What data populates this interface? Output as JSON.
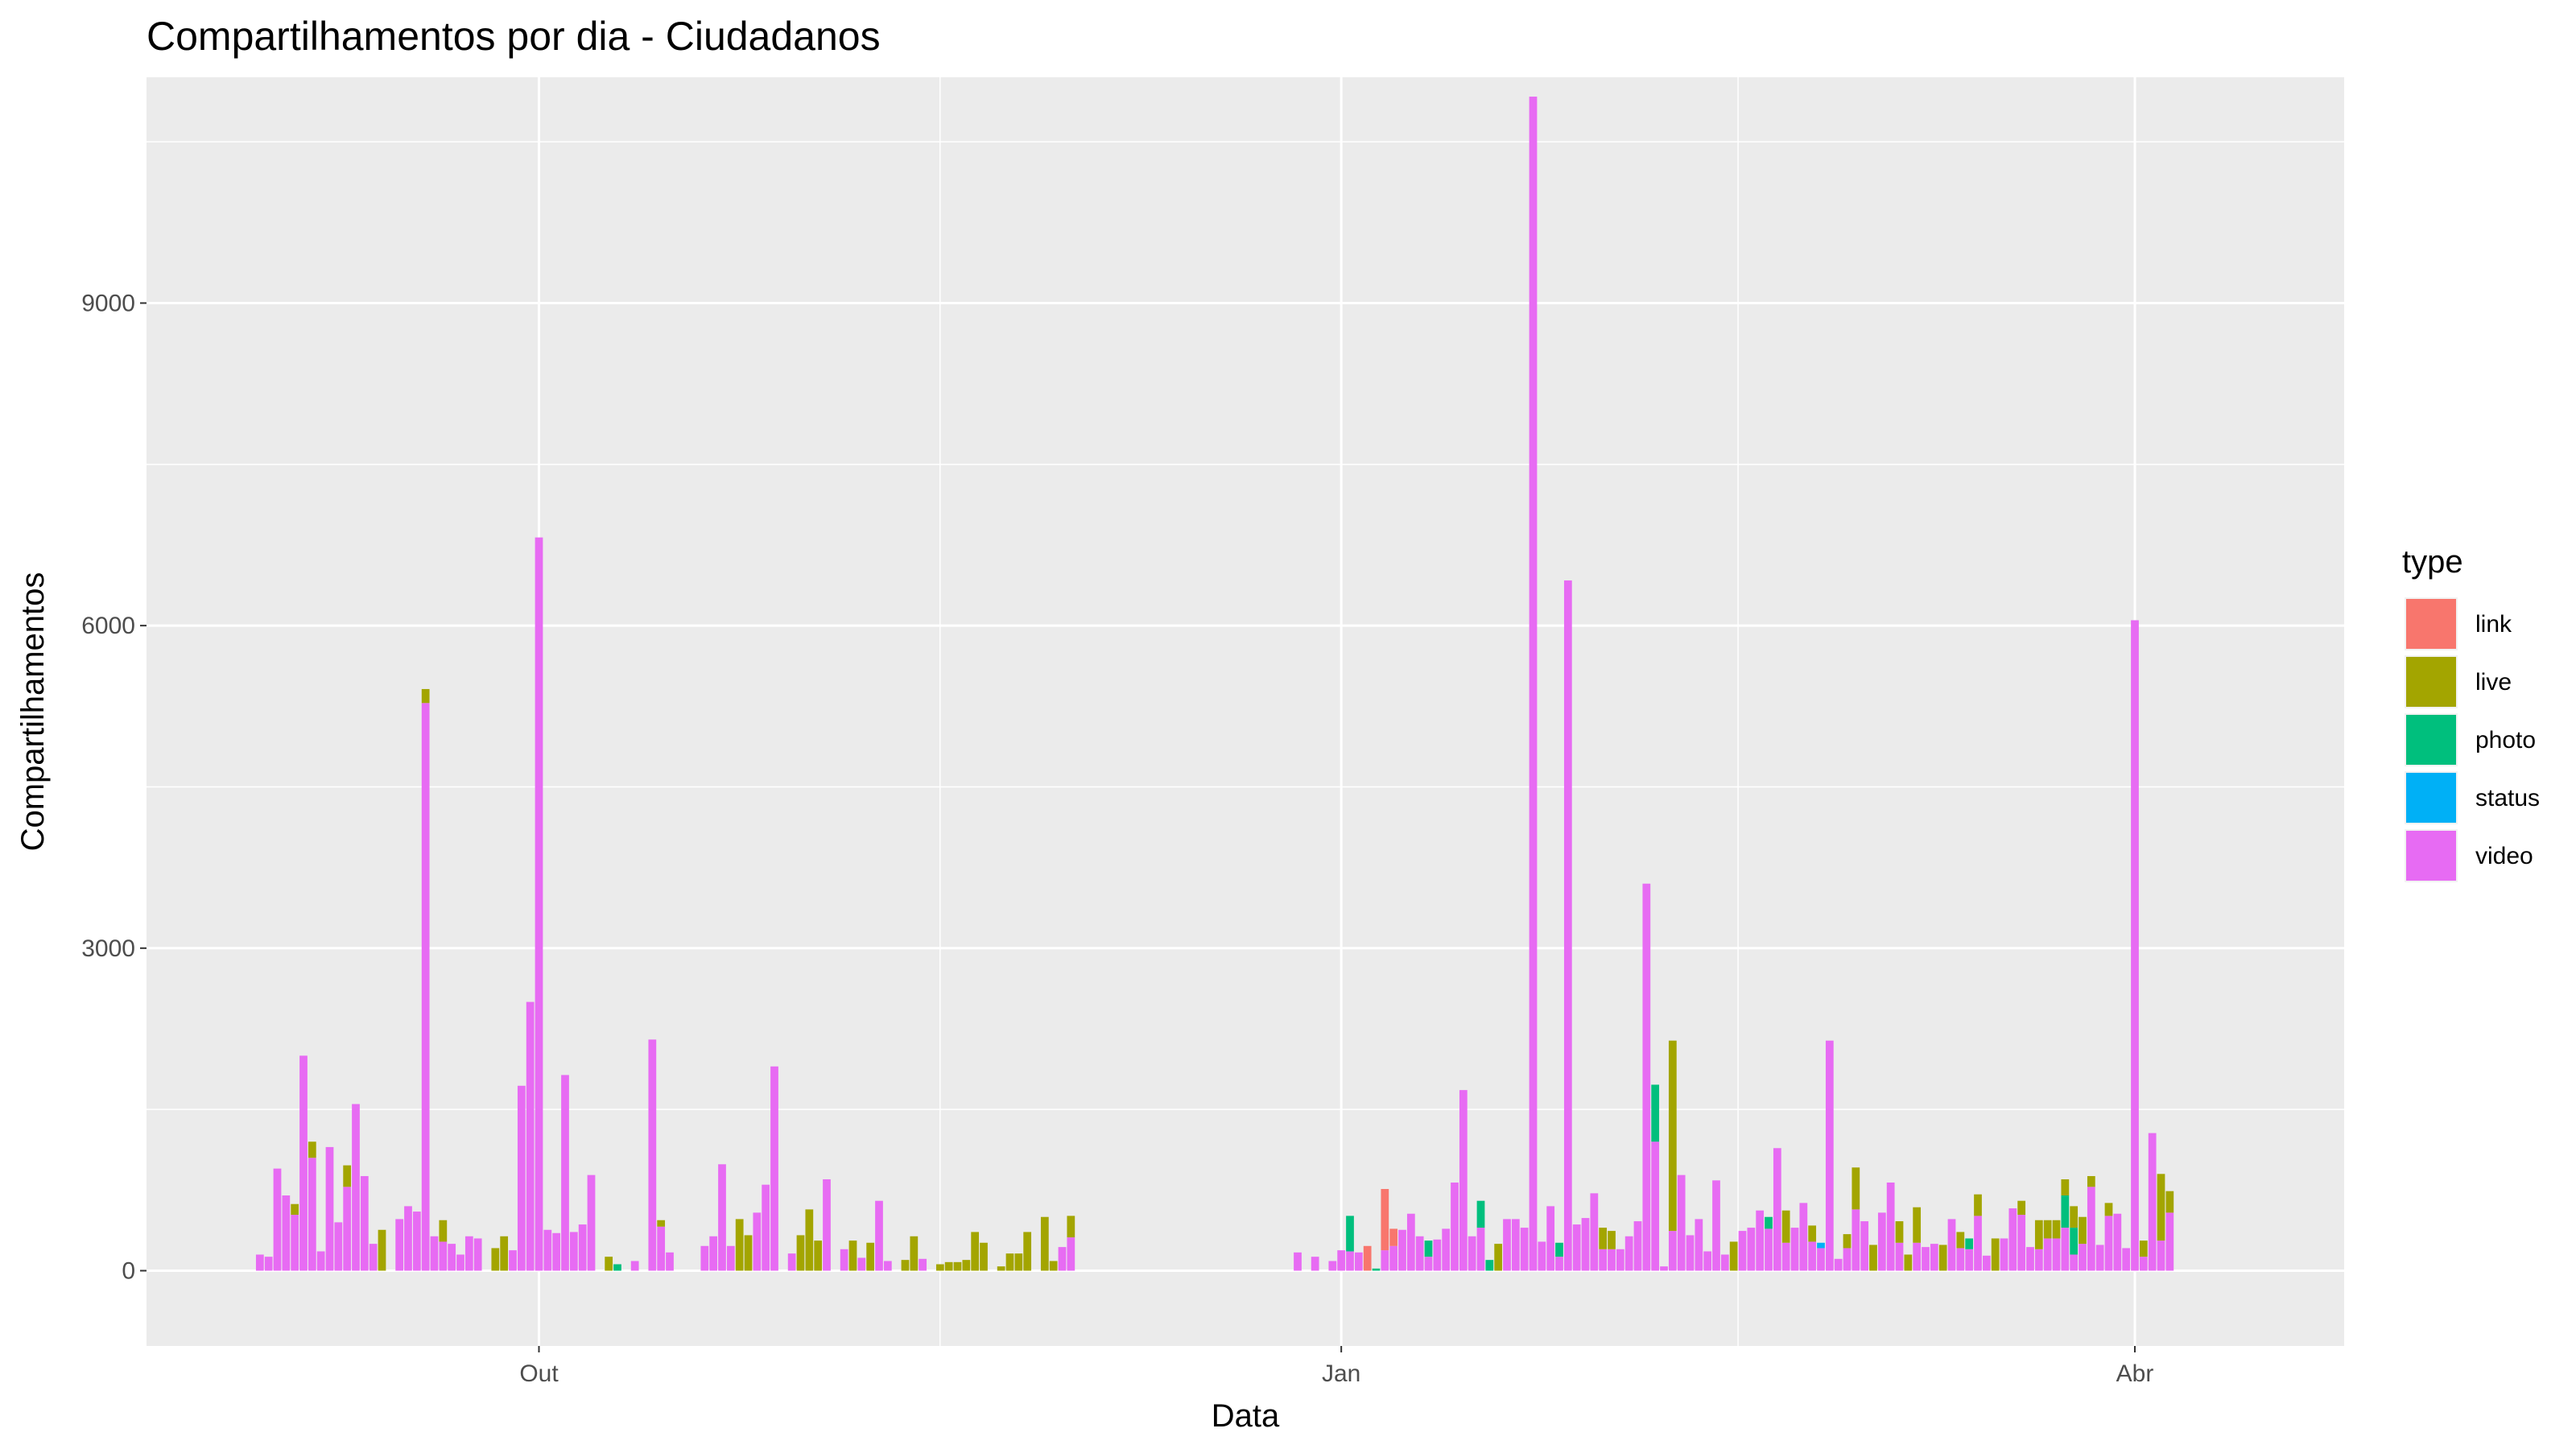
{
  "chart_data": {
    "type": "bar",
    "stacked": true,
    "title": "Compartilhamentos por dia - Ciudadanos",
    "xlabel": "Data",
    "ylabel": "Compartilhamentos",
    "x_ticks": [
      {
        "date": "2019-10-01",
        "label": "Out"
      },
      {
        "date": "2020-01-01",
        "label": "Jan"
      },
      {
        "date": "2020-04-01",
        "label": "Abr"
      }
    ],
    "y_ticks": [
      0,
      3000,
      6000,
      9000
    ],
    "xlim": [
      "2019-08-17",
      "2020-04-25"
    ],
    "ylim": [
      -700,
      11100
    ],
    "grid": true,
    "legend": {
      "title": "type",
      "position": "right",
      "entries": [
        {
          "name": "link",
          "color": "#F8766D"
        },
        {
          "name": "live",
          "color": "#A3A500"
        },
        {
          "name": "photo",
          "color": "#00BF7D"
        },
        {
          "name": "status",
          "color": "#00B0F6"
        },
        {
          "name": "video",
          "color": "#E76BF3"
        }
      ]
    },
    "series_order": [
      "link",
      "live",
      "photo",
      "status",
      "video"
    ],
    "bars": [
      {
        "date": "2019-08-30",
        "video": 150
      },
      {
        "date": "2019-08-31",
        "video": 130
      },
      {
        "date": "2019-09-01",
        "video": 950
      },
      {
        "date": "2019-09-02",
        "video": 700
      },
      {
        "date": "2019-09-03",
        "live": 100,
        "video": 520
      },
      {
        "date": "2019-09-04",
        "video": 2000
      },
      {
        "date": "2019-09-05",
        "live": 150,
        "video": 1050
      },
      {
        "date": "2019-09-06",
        "video": 180
      },
      {
        "date": "2019-09-07",
        "video": 1150
      },
      {
        "date": "2019-09-08",
        "video": 450
      },
      {
        "date": "2019-09-09",
        "live": 200,
        "video": 780
      },
      {
        "date": "2019-09-10",
        "video": 1550
      },
      {
        "date": "2019-09-11",
        "video": 880
      },
      {
        "date": "2019-09-12",
        "video": 250
      },
      {
        "date": "2019-09-13",
        "live": 380
      },
      {
        "date": "2019-09-15",
        "video": 480
      },
      {
        "date": "2019-09-16",
        "video": 600
      },
      {
        "date": "2019-09-17",
        "video": 550
      },
      {
        "date": "2019-09-18",
        "live": 130,
        "video": 5280
      },
      {
        "date": "2019-09-19",
        "video": 320
      },
      {
        "date": "2019-09-20",
        "live": 200,
        "video": 270
      },
      {
        "date": "2019-09-21",
        "video": 250
      },
      {
        "date": "2019-09-22",
        "video": 150
      },
      {
        "date": "2019-09-23",
        "video": 320
      },
      {
        "date": "2019-09-24",
        "video": 300
      },
      {
        "date": "2019-09-26",
        "live": 210
      },
      {
        "date": "2019-09-27",
        "live": 320
      },
      {
        "date": "2019-09-28",
        "video": 190
      },
      {
        "date": "2019-09-29",
        "video": 1720
      },
      {
        "date": "2019-09-30",
        "video": 2500
      },
      {
        "date": "2019-10-01",
        "video": 6820
      },
      {
        "date": "2019-10-02",
        "video": 380
      },
      {
        "date": "2019-10-03",
        "video": 350
      },
      {
        "date": "2019-10-04",
        "video": 1820
      },
      {
        "date": "2019-10-05",
        "video": 360
      },
      {
        "date": "2019-10-06",
        "video": 430
      },
      {
        "date": "2019-10-07",
        "video": 890
      },
      {
        "date": "2019-10-09",
        "live": 130
      },
      {
        "date": "2019-10-10",
        "photo": 60
      },
      {
        "date": "2019-10-12",
        "video": 90
      },
      {
        "date": "2019-10-14",
        "video": 2150
      },
      {
        "date": "2019-10-15",
        "live": 60,
        "video": 410
      },
      {
        "date": "2019-10-16",
        "video": 170
      },
      {
        "date": "2019-10-20",
        "video": 230
      },
      {
        "date": "2019-10-21",
        "video": 320
      },
      {
        "date": "2019-10-22",
        "video": 990
      },
      {
        "date": "2019-10-23",
        "video": 230
      },
      {
        "date": "2019-10-24",
        "live": 480
      },
      {
        "date": "2019-10-25",
        "live": 330
      },
      {
        "date": "2019-10-26",
        "video": 540
      },
      {
        "date": "2019-10-27",
        "video": 800
      },
      {
        "date": "2019-10-28",
        "video": 1900
      },
      {
        "date": "2019-10-30",
        "video": 160
      },
      {
        "date": "2019-10-31",
        "live": 330
      },
      {
        "date": "2019-11-01",
        "live": 570
      },
      {
        "date": "2019-11-02",
        "live": 280
      },
      {
        "date": "2019-11-03",
        "video": 850
      },
      {
        "date": "2019-11-05",
        "video": 200
      },
      {
        "date": "2019-11-06",
        "live": 280
      },
      {
        "date": "2019-11-07",
        "video": 120
      },
      {
        "date": "2019-11-08",
        "live": 260
      },
      {
        "date": "2019-11-09",
        "video": 650
      },
      {
        "date": "2019-11-10",
        "video": 90
      },
      {
        "date": "2019-11-12",
        "live": 100
      },
      {
        "date": "2019-11-13",
        "live": 320
      },
      {
        "date": "2019-11-14",
        "video": 110
      },
      {
        "date": "2019-11-16",
        "live": 60
      },
      {
        "date": "2019-11-17",
        "live": 80
      },
      {
        "date": "2019-11-18",
        "live": 80
      },
      {
        "date": "2019-11-19",
        "live": 100
      },
      {
        "date": "2019-11-20",
        "live": 360
      },
      {
        "date": "2019-11-21",
        "live": 260
      },
      {
        "date": "2019-11-23",
        "live": 40
      },
      {
        "date": "2019-11-24",
        "live": 160
      },
      {
        "date": "2019-11-25",
        "live": 160
      },
      {
        "date": "2019-11-26",
        "live": 360
      },
      {
        "date": "2019-11-28",
        "live": 500
      },
      {
        "date": "2019-11-29",
        "live": 90
      },
      {
        "date": "2019-11-30",
        "video": 220
      },
      {
        "date": "2019-12-01",
        "live": 200,
        "video": 310
      },
      {
        "date": "2019-12-27",
        "video": 170
      },
      {
        "date": "2019-12-29",
        "video": 130
      },
      {
        "date": "2019-12-31",
        "video": 90
      },
      {
        "date": "2020-01-01",
        "video": 190
      },
      {
        "date": "2020-01-02",
        "photo": 330,
        "video": 180
      },
      {
        "date": "2020-01-03",
        "video": 170
      },
      {
        "date": "2020-01-04",
        "link": 230
      },
      {
        "date": "2020-01-05",
        "photo": 20
      },
      {
        "date": "2020-01-06",
        "link": 570,
        "video": 190
      },
      {
        "date": "2020-01-07",
        "link": 160,
        "video": 230
      },
      {
        "date": "2020-01-08",
        "video": 380
      },
      {
        "date": "2020-01-09",
        "video": 530
      },
      {
        "date": "2020-01-10",
        "video": 320
      },
      {
        "date": "2020-01-11",
        "photo": 150,
        "video": 130
      },
      {
        "date": "2020-01-12",
        "video": 290
      },
      {
        "date": "2020-01-13",
        "video": 390
      },
      {
        "date": "2020-01-14",
        "video": 820
      },
      {
        "date": "2020-01-15",
        "video": 1680
      },
      {
        "date": "2020-01-16",
        "video": 320
      },
      {
        "date": "2020-01-17",
        "photo": 250,
        "video": 400
      },
      {
        "date": "2020-01-18",
        "photo": 100
      },
      {
        "date": "2020-01-19",
        "live": 250
      },
      {
        "date": "2020-01-20",
        "video": 480
      },
      {
        "date": "2020-01-21",
        "video": 480
      },
      {
        "date": "2020-01-22",
        "video": 400
      },
      {
        "date": "2020-01-23",
        "video": 10920
      },
      {
        "date": "2020-01-24",
        "video": 270
      },
      {
        "date": "2020-01-25",
        "video": 600
      },
      {
        "date": "2020-01-26",
        "photo": 130,
        "video": 130
      },
      {
        "date": "2020-01-27",
        "video": 6420
      },
      {
        "date": "2020-01-28",
        "video": 430
      },
      {
        "date": "2020-01-29",
        "video": 490
      },
      {
        "date": "2020-01-30",
        "video": 720
      },
      {
        "date": "2020-01-31",
        "live": 200,
        "video": 200
      },
      {
        "date": "2020-02-01",
        "live": 170,
        "video": 200
      },
      {
        "date": "2020-02-02",
        "video": 200
      },
      {
        "date": "2020-02-03",
        "video": 320
      },
      {
        "date": "2020-02-04",
        "video": 460
      },
      {
        "date": "2020-02-05",
        "video": 3600
      },
      {
        "date": "2020-02-06",
        "photo": 530,
        "video": 1200
      },
      {
        "date": "2020-02-07",
        "video": 40
      },
      {
        "date": "2020-02-08",
        "live": 1770,
        "video": 370
      },
      {
        "date": "2020-02-09",
        "video": 890
      },
      {
        "date": "2020-02-10",
        "video": 330
      },
      {
        "date": "2020-02-11",
        "video": 480
      },
      {
        "date": "2020-02-12",
        "video": 180
      },
      {
        "date": "2020-02-13",
        "video": 840
      },
      {
        "date": "2020-02-14",
        "video": 150
      },
      {
        "date": "2020-02-15",
        "live": 270
      },
      {
        "date": "2020-02-16",
        "video": 370
      },
      {
        "date": "2020-02-17",
        "video": 400
      },
      {
        "date": "2020-02-18",
        "video": 560
      },
      {
        "date": "2020-02-19",
        "photo": 110,
        "video": 390
      },
      {
        "date": "2020-02-20",
        "video": 1140
      },
      {
        "date": "2020-02-21",
        "live": 300,
        "video": 260
      },
      {
        "date": "2020-02-22",
        "video": 400
      },
      {
        "date": "2020-02-23",
        "video": 630
      },
      {
        "date": "2020-02-24",
        "live": 150,
        "video": 270
      },
      {
        "date": "2020-02-25",
        "status": 50,
        "video": 210
      },
      {
        "date": "2020-02-26",
        "video": 2140
      },
      {
        "date": "2020-02-27",
        "video": 110
      },
      {
        "date": "2020-02-28",
        "live": 130,
        "video": 210
      },
      {
        "date": "2020-02-29",
        "live": 390,
        "video": 570
      },
      {
        "date": "2020-03-01",
        "video": 460
      },
      {
        "date": "2020-03-02",
        "live": 240
      },
      {
        "date": "2020-03-03",
        "video": 540
      },
      {
        "date": "2020-03-04",
        "video": 820
      },
      {
        "date": "2020-03-05",
        "live": 200,
        "video": 260
      },
      {
        "date": "2020-03-06",
        "live": 150
      },
      {
        "date": "2020-03-07",
        "live": 330,
        "video": 260
      },
      {
        "date": "2020-03-08",
        "video": 220
      },
      {
        "date": "2020-03-09",
        "video": 250
      },
      {
        "date": "2020-03-10",
        "live": 240
      },
      {
        "date": "2020-03-11",
        "video": 480
      },
      {
        "date": "2020-03-12",
        "live": 150,
        "video": 210
      },
      {
        "date": "2020-03-13",
        "photo": 100,
        "video": 200
      },
      {
        "date": "2020-03-14",
        "live": 200,
        "video": 510
      },
      {
        "date": "2020-03-15",
        "video": 140
      },
      {
        "date": "2020-03-16",
        "live": 300
      },
      {
        "date": "2020-03-17",
        "video": 300
      },
      {
        "date": "2020-03-18",
        "video": 580
      },
      {
        "date": "2020-03-19",
        "live": 130,
        "video": 520
      },
      {
        "date": "2020-03-20",
        "video": 220
      },
      {
        "date": "2020-03-21",
        "live": 270,
        "video": 200
      },
      {
        "date": "2020-03-22",
        "live": 170,
        "video": 300
      },
      {
        "date": "2020-03-23",
        "live": 170,
        "video": 300
      },
      {
        "date": "2020-03-24",
        "live": 150,
        "photo": 300,
        "video": 400
      },
      {
        "date": "2020-03-25",
        "live": 200,
        "photo": 250,
        "video": 150
      },
      {
        "date": "2020-03-26",
        "live": 250,
        "video": 250
      },
      {
        "date": "2020-03-27",
        "live": 100,
        "video": 780
      },
      {
        "date": "2020-03-28",
        "video": 240
      },
      {
        "date": "2020-03-29",
        "live": 120,
        "video": 510
      },
      {
        "date": "2020-03-30",
        "video": 530
      },
      {
        "date": "2020-03-31",
        "video": 210
      },
      {
        "date": "2020-04-01",
        "video": 6050
      },
      {
        "date": "2020-04-02",
        "live": 150,
        "video": 130
      },
      {
        "date": "2020-04-03",
        "video": 1280
      },
      {
        "date": "2020-04-04",
        "live": 620,
        "video": 280
      },
      {
        "date": "2020-04-05",
        "live": 200,
        "video": 540
      }
    ]
  }
}
